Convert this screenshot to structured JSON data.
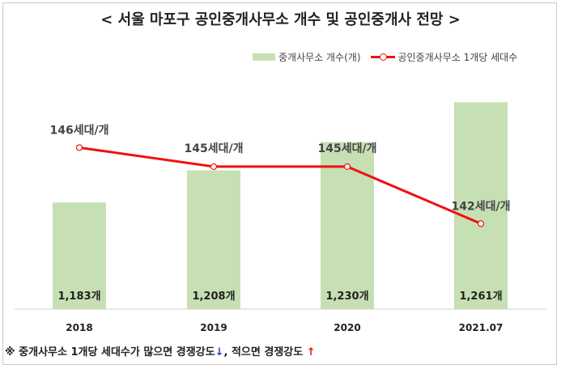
{
  "title": "< 서울 마포구 공인중개사무소 개수 및 공인중개사 전망 >",
  "legend": {
    "bar_label": "중개사무소 개수(개)",
    "line_label": "공인중개사무소 1개당 세대수"
  },
  "colors": {
    "bar": "#c6e0b4",
    "line": "#ee1111",
    "down_arrow": "#1f3fd6",
    "up_arrow": "#e01010"
  },
  "chart_data": {
    "type": "bar",
    "categories": [
      "2018",
      "2019",
      "2020",
      "2021.07"
    ],
    "series": [
      {
        "name": "중개사무소 개수(개)",
        "type": "bar",
        "values": [
          1183,
          1208,
          1230,
          1261
        ],
        "labels": [
          "1,183개",
          "1,208개",
          "1,230개",
          "1,261개"
        ]
      },
      {
        "name": "공인중개사무소 1개당 세대수",
        "type": "line",
        "values": [
          146,
          145,
          145,
          142
        ],
        "labels": [
          "146세대/개",
          "145세대/개",
          "145세대/개",
          "142세대/개"
        ]
      }
    ],
    "bar_ylim": [
      1100,
      1270
    ],
    "line_ylim": [
      137.5,
      149
    ],
    "grid": false,
    "legend_position": "top-right"
  },
  "footnote": {
    "part1": "※ 중개사무소 1개당 세대수가 많으면 경쟁강도",
    "arrow_down": "↓",
    "part2": ", 적으면 경쟁강도",
    "arrow_up": "↑"
  }
}
